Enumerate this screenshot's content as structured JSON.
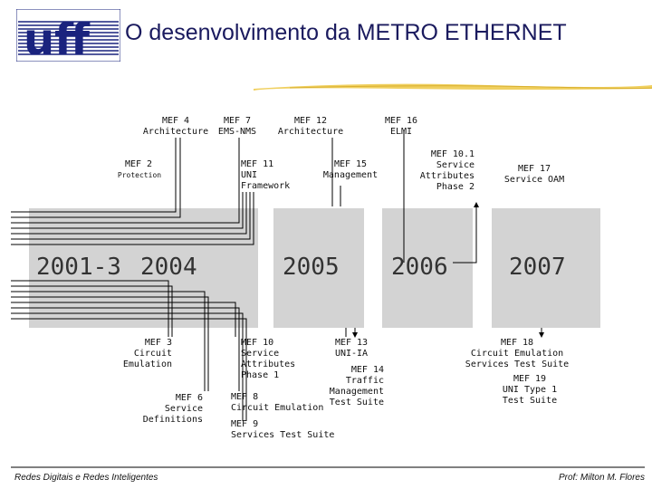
{
  "title": "O desenvolvimento da METRO ETHERNET",
  "logo": {
    "text": "uff",
    "color": "#1a237e"
  },
  "years": [
    "2001-3",
    "2004",
    "2005",
    "2006",
    "2007"
  ],
  "top_labels": {
    "mef4": "MEF 4\nArchitecture",
    "mef7": "MEF 7\nEMS-NMS",
    "mef12": "MEF 12\nArchitecture",
    "mef16": "MEF 16\nELMI",
    "mef2": "MEF 2",
    "mef2_sub": "Protection",
    "mef11": "MEF 11\nUNI\nFramework",
    "mef15": "MEF 15\nManagement",
    "mef10_1": "MEF 10.1\nService\nAttributes\nPhase 2",
    "mef17": "MEF 17\nService OAM"
  },
  "bottom_labels": {
    "mef3": "MEF 3\nCircuit\nEmulation",
    "mef6": "MEF 6\nService\nDefinitions",
    "mef10": "MEF 10\nService\nAttributes\nPhase 1",
    "mef8": "MEF 8\nCircuit Emulation",
    "mef9": "MEF 9\nServices Test Suite",
    "mef13": "MEF 13\nUNI-IA",
    "mef14": "MEF 14\nTraffic\nManagement\nTest Suite",
    "mef18": "MEF 18\nCircuit Emulation\nServices Test Suite",
    "mef19": "MEF 19\nUNI Type 1\nTest Suite"
  },
  "footer": {
    "left": "Redes Digitais e Redes Inteligentes",
    "right": "Prof: Milton M. Flores"
  },
  "colors": {
    "band": "#d3d3d3",
    "title": "#1a1a5e",
    "swoosh": "#f0d060"
  }
}
